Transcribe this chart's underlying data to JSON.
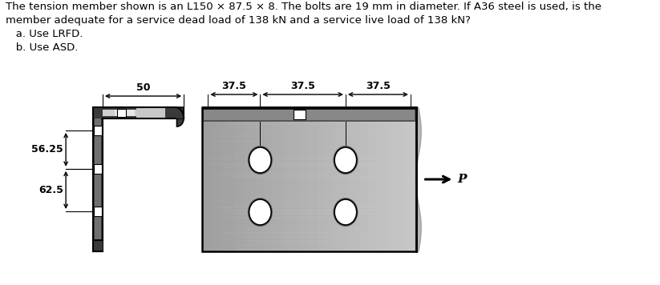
{
  "title_line1": "The tension member shown is an L150 × 87.5 × 8. The bolts are 19 mm in diameter. If A36 steel is used, is the",
  "title_line2": "member adequate for a service dead load of 138 kN and a service live load of 138 kN?",
  "title_line3": "   a. Use LRFD.",
  "title_line4": "   b. Use ASD.",
  "title_fontsize": 9.5,
  "bg_color": "#ffffff",
  "dim_50": "50",
  "dim_37_5_labels": [
    "37.5",
    "37.5",
    "37.5"
  ],
  "dim_56_25": "56.25",
  "dim_62_5": "62.5",
  "P_label": "P",
  "dark_gray": "#3a3a3a",
  "mid_gray": "#707070",
  "light_gray": "#b0b0b0",
  "plate_fill": "#b8b8b8",
  "white": "#ffffff"
}
